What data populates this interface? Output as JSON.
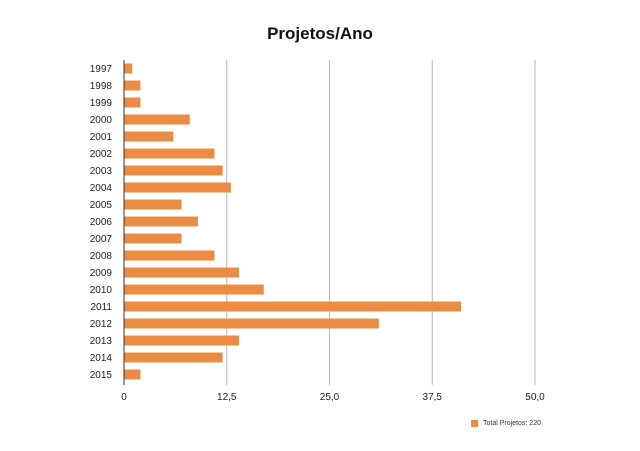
{
  "chart_data": {
    "type": "bar",
    "orientation": "horizontal",
    "title": "Projetos/Ano",
    "categories": [
      "1997",
      "1998",
      "1999",
      "2000",
      "2001",
      "2002",
      "2003",
      "2004",
      "2005",
      "2006",
      "2007",
      "2008",
      "2009",
      "2010",
      "2011",
      "2012",
      "2013",
      "2014",
      "2015"
    ],
    "series": [
      {
        "name": "Total Projetos: 220",
        "values": [
          1,
          2,
          2,
          8,
          6,
          11,
          12,
          13,
          7,
          9,
          7,
          11,
          14,
          17,
          41,
          31,
          14,
          12,
          2
        ]
      }
    ],
    "xlim": [
      0,
      50
    ],
    "x_ticks": [
      "0",
      "12,5",
      "25,0",
      "37,5",
      "50,0"
    ],
    "x_tick_values": [
      0,
      12.5,
      25,
      37.5,
      50
    ],
    "grid": "vertical",
    "legend": "bottom-right",
    "colors": {
      "bar": "#EB8C45",
      "grid": "#B8B8B8",
      "axis": "#333333"
    }
  }
}
